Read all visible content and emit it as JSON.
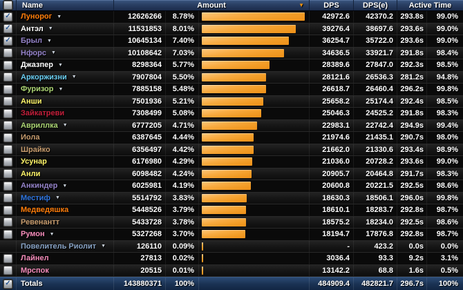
{
  "header": {
    "name": "Name",
    "amount": "Amount",
    "dps": "DPS",
    "dpse": "DPS(e)",
    "active_time": "Active Time"
  },
  "icons": {
    "check": "✓",
    "expand_arrow": "▼",
    "sort_arrow": "▼"
  },
  "colors": {
    "bar_orange": "#f29c26",
    "header_blue": "#2a3f63",
    "totals_blue": "#1b3354"
  },
  "rows": [
    {
      "name": "Лунорог",
      "color": "#ff7d0a",
      "checked": true,
      "expandable": true,
      "amount": "12626266",
      "pct": "8.78%",
      "dps": "42972.6",
      "dpse": "42370.2",
      "time": "293.8s",
      "time_pct": "99.0%"
    },
    {
      "name": "Антэл",
      "color": "#ffffff",
      "checked": true,
      "expandable": true,
      "amount": "11531853",
      "pct": "8.01%",
      "dps": "39276.4",
      "dpse": "38697.6",
      "time": "293.6s",
      "time_pct": "99.0%"
    },
    {
      "name": "Брыл",
      "color": "#9482c9",
      "checked": true,
      "expandable": true,
      "amount": "10645134",
      "pct": "7.40%",
      "dps": "36254.7",
      "dpse": "35722.0",
      "time": "293.6s",
      "time_pct": "99.0%"
    },
    {
      "name": "Нфорс",
      "color": "#9482c9",
      "checked": false,
      "expandable": true,
      "amount": "10108642",
      "pct": "7.03%",
      "dps": "34636.5",
      "dpse": "33921.7",
      "time": "291.8s",
      "time_pct": "98.4%"
    },
    {
      "name": "Джазпер",
      "color": "#ffffff",
      "checked": false,
      "expandable": true,
      "amount": "8298364",
      "pct": "5.77%",
      "dps": "28389.6",
      "dpse": "27847.0",
      "time": "292.3s",
      "time_pct": "98.5%"
    },
    {
      "name": "Аркоржизни",
      "color": "#69ccf0",
      "checked": false,
      "expandable": true,
      "amount": "7907804",
      "pct": "5.50%",
      "dps": "28121.6",
      "dpse": "26536.3",
      "time": "281.2s",
      "time_pct": "94.8%"
    },
    {
      "name": "Фуризор",
      "color": "#abd473",
      "checked": false,
      "expandable": true,
      "amount": "7885158",
      "pct": "5.48%",
      "dps": "26618.7",
      "dpse": "26460.4",
      "time": "296.2s",
      "time_pct": "99.8%"
    },
    {
      "name": "Анши",
      "color": "#fff569",
      "checked": false,
      "expandable": false,
      "amount": "7501936",
      "pct": "5.21%",
      "dps": "25658.2",
      "dpse": "25174.4",
      "time": "292.4s",
      "time_pct": "98.5%"
    },
    {
      "name": "Зайкатреви",
      "color": "#c41f3b",
      "checked": false,
      "expandable": false,
      "amount": "7308499",
      "pct": "5.08%",
      "dps": "25046.3",
      "dpse": "24525.2",
      "time": "291.8s",
      "time_pct": "98.3%"
    },
    {
      "name": "Авриллка",
      "color": "#abd473",
      "checked": false,
      "expandable": true,
      "amount": "6777205",
      "pct": "4.71%",
      "dps": "22983.1",
      "dpse": "22742.4",
      "time": "294.9s",
      "time_pct": "99.4%"
    },
    {
      "name": "Иола",
      "color": "#c79c6e",
      "checked": false,
      "expandable": false,
      "amount": "6387645",
      "pct": "4.44%",
      "dps": "21974.6",
      "dpse": "21435.1",
      "time": "290.7s",
      "time_pct": "98.0%"
    },
    {
      "name": "Шрайко",
      "color": "#c79c6e",
      "checked": false,
      "expandable": false,
      "amount": "6356497",
      "pct": "4.42%",
      "dps": "21662.0",
      "dpse": "21330.6",
      "time": "293.4s",
      "time_pct": "98.9%"
    },
    {
      "name": "Усунар",
      "color": "#fff569",
      "checked": false,
      "expandable": false,
      "amount": "6176980",
      "pct": "4.29%",
      "dps": "21036.0",
      "dpse": "20728.2",
      "time": "293.6s",
      "time_pct": "99.0%"
    },
    {
      "name": "Анли",
      "color": "#fff569",
      "checked": false,
      "expandable": false,
      "amount": "6098482",
      "pct": "4.24%",
      "dps": "20905.7",
      "dpse": "20464.8",
      "time": "291.7s",
      "time_pct": "98.3%"
    },
    {
      "name": "Анкиндер",
      "color": "#9482c9",
      "checked": false,
      "expandable": true,
      "amount": "6025981",
      "pct": "4.19%",
      "dps": "20600.8",
      "dpse": "20221.5",
      "time": "292.5s",
      "time_pct": "98.6%"
    },
    {
      "name": "Местиф",
      "color": "#2f76e0",
      "checked": false,
      "expandable": true,
      "amount": "5514792",
      "pct": "3.83%",
      "dps": "18630.3",
      "dpse": "18506.1",
      "time": "296.0s",
      "time_pct": "99.8%"
    },
    {
      "name": "Медведяшка",
      "color": "#ff7d0a",
      "checked": false,
      "expandable": false,
      "amount": "5448526",
      "pct": "3.79%",
      "dps": "18610.1",
      "dpse": "18283.7",
      "time": "292.8s",
      "time_pct": "98.7%"
    },
    {
      "name": "Ревенантт",
      "color": "#c79c6e",
      "checked": false,
      "expandable": false,
      "amount": "5433728",
      "pct": "3.78%",
      "dps": "18575.2",
      "dpse": "18234.0",
      "time": "292.5s",
      "time_pct": "98.6%"
    },
    {
      "name": "Румон",
      "color": "#f58cba",
      "checked": false,
      "expandable": true,
      "amount": "5327268",
      "pct": "3.70%",
      "dps": "18194.7",
      "dpse": "17876.8",
      "time": "292.8s",
      "time_pct": "98.7%"
    },
    {
      "name": "Повелитель Риолит",
      "color": "#87a2c4",
      "checked": null,
      "expandable": true,
      "amount": "126110",
      "pct": "0.09%",
      "dps": "-",
      "dpse": "423.2",
      "time": "0.0s",
      "time_pct": "0.0%"
    },
    {
      "name": "Лайнел",
      "color": "#f58cba",
      "checked": false,
      "expandable": false,
      "amount": "27813",
      "pct": "0.02%",
      "dps": "3036.4",
      "dpse": "93.3",
      "time": "9.2s",
      "time_pct": "3.1%"
    },
    {
      "name": "Мрспок",
      "color": "#f58cba",
      "checked": false,
      "expandable": false,
      "amount": "20515",
      "pct": "0.01%",
      "dps": "13142.2",
      "dpse": "68.8",
      "time": "1.6s",
      "time_pct": "0.5%"
    }
  ],
  "totals": {
    "label": "Totals",
    "checked": true,
    "amount": "143880371",
    "pct": "100%",
    "dps": "484909.4",
    "dpse": "482821.7",
    "time": "296.7s",
    "time_pct": "100%"
  }
}
